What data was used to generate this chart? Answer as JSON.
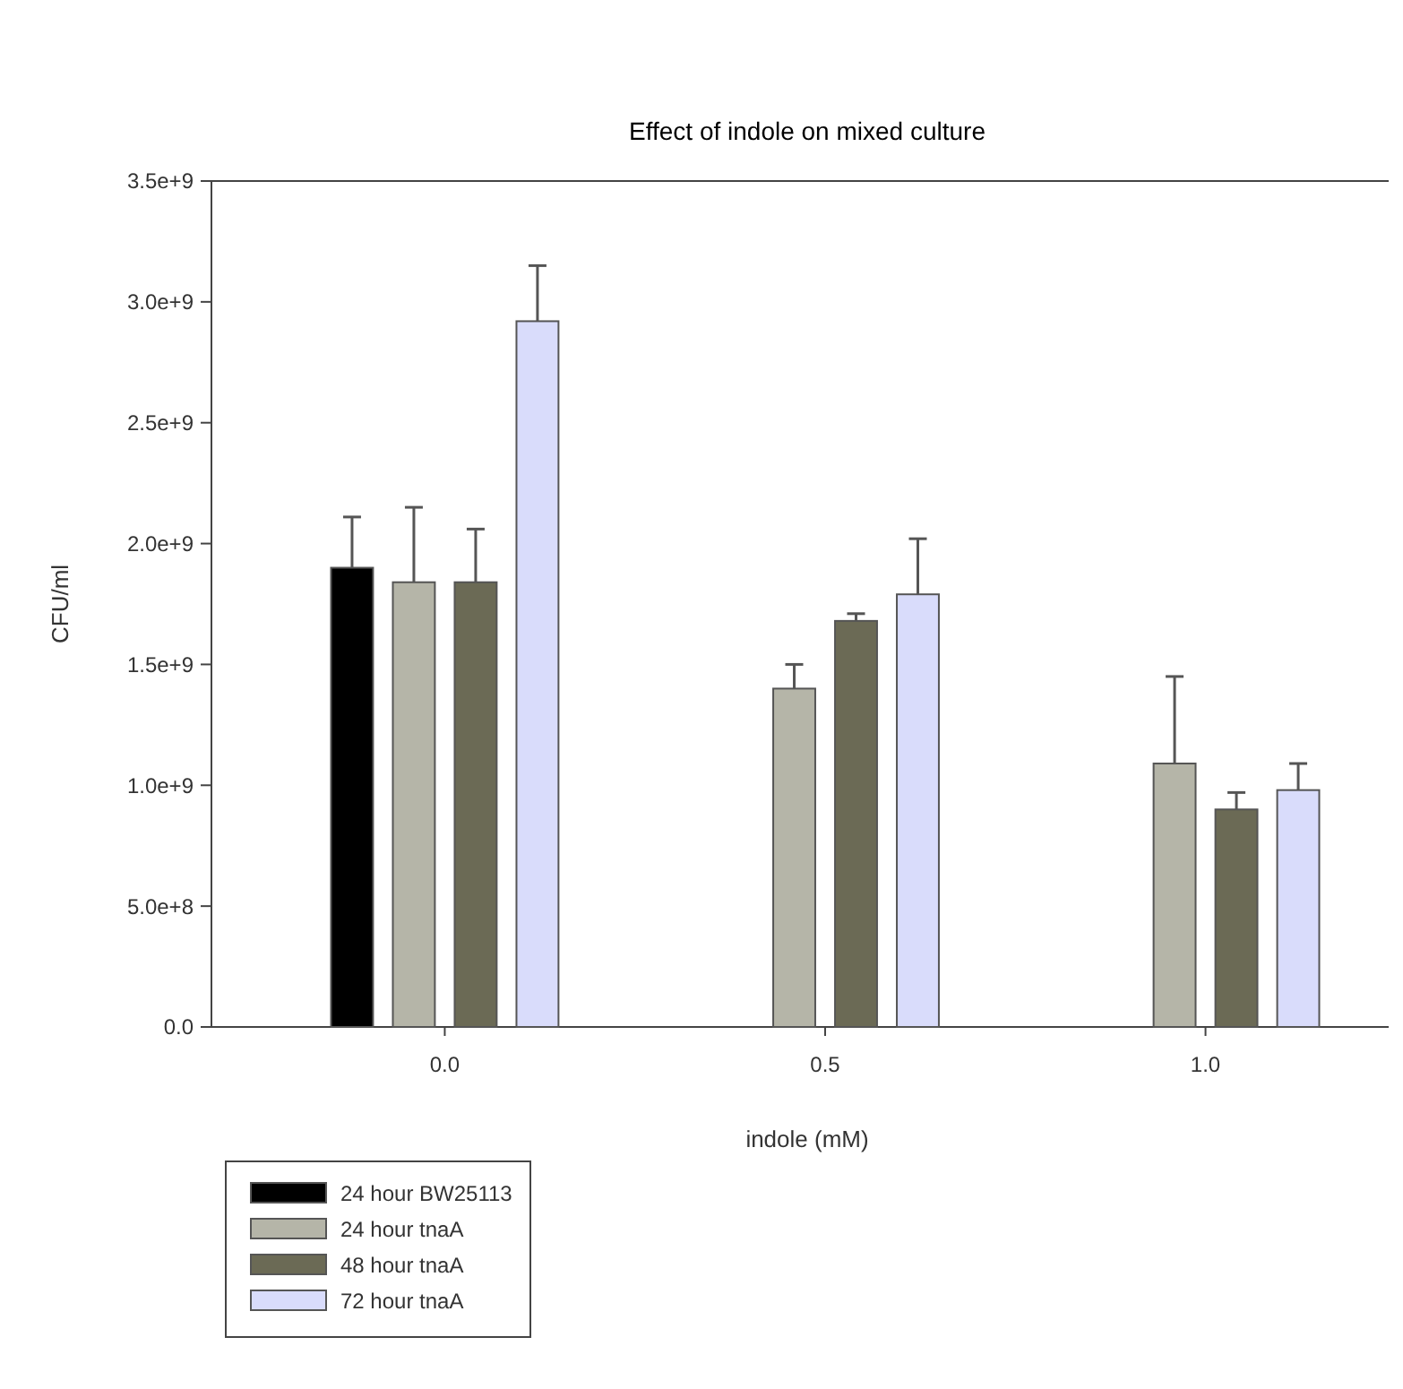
{
  "chart_data": {
    "type": "bar",
    "title": "Effect of indole on mixed culture",
    "xlabel": "indole (mM)",
    "ylabel": "CFU/ml",
    "categories": [
      "0.0",
      "0.5",
      "1.0"
    ],
    "series": [
      {
        "name": "24 hour BW25113",
        "color": "#000000",
        "values": [
          1900000000,
          null,
          null
        ],
        "errors": [
          [
            1900000000,
            2110000000
          ],
          null,
          null
        ]
      },
      {
        "name": "24 hour tnaA",
        "color": "#b5b5a8",
        "values": [
          1840000000,
          1400000000,
          1090000000
        ],
        "errors": [
          [
            1840000000,
            2150000000
          ],
          [
            1400000000,
            1500000000
          ],
          [
            1090000000,
            1450000000
          ]
        ]
      },
      {
        "name": "48 hour tnaA",
        "color": "#6b6a55",
        "values": [
          1840000000,
          1680000000,
          900000000
        ],
        "errors": [
          [
            1840000000,
            2060000000
          ],
          [
            1680000000,
            1710000000
          ],
          [
            900000000,
            970000000
          ]
        ]
      },
      {
        "name": "72 hour tnaA",
        "color": "#d9dcfb",
        "values": [
          2920000000,
          1790000000,
          980000000
        ],
        "errors": [
          [
            2920000000,
            3150000000
          ],
          [
            1790000000,
            2020000000
          ],
          [
            980000000,
            1090000000
          ]
        ]
      }
    ],
    "ylim": [
      0,
      3500000000
    ],
    "yticks": [
      {
        "value": 0,
        "label": "0.0"
      },
      {
        "value": 500000000,
        "label": "5.0e+8"
      },
      {
        "value": 1000000000,
        "label": "1.0e+9"
      },
      {
        "value": 1500000000,
        "label": "1.5e+9"
      },
      {
        "value": 2000000000,
        "label": "2.0e+9"
      },
      {
        "value": 2500000000,
        "label": "2.5e+9"
      },
      {
        "value": 3000000000,
        "label": "3.0e+9"
      },
      {
        "value": 3500000000,
        "label": "3.5e+9"
      }
    ],
    "grid": false,
    "legend": "bottom left"
  }
}
